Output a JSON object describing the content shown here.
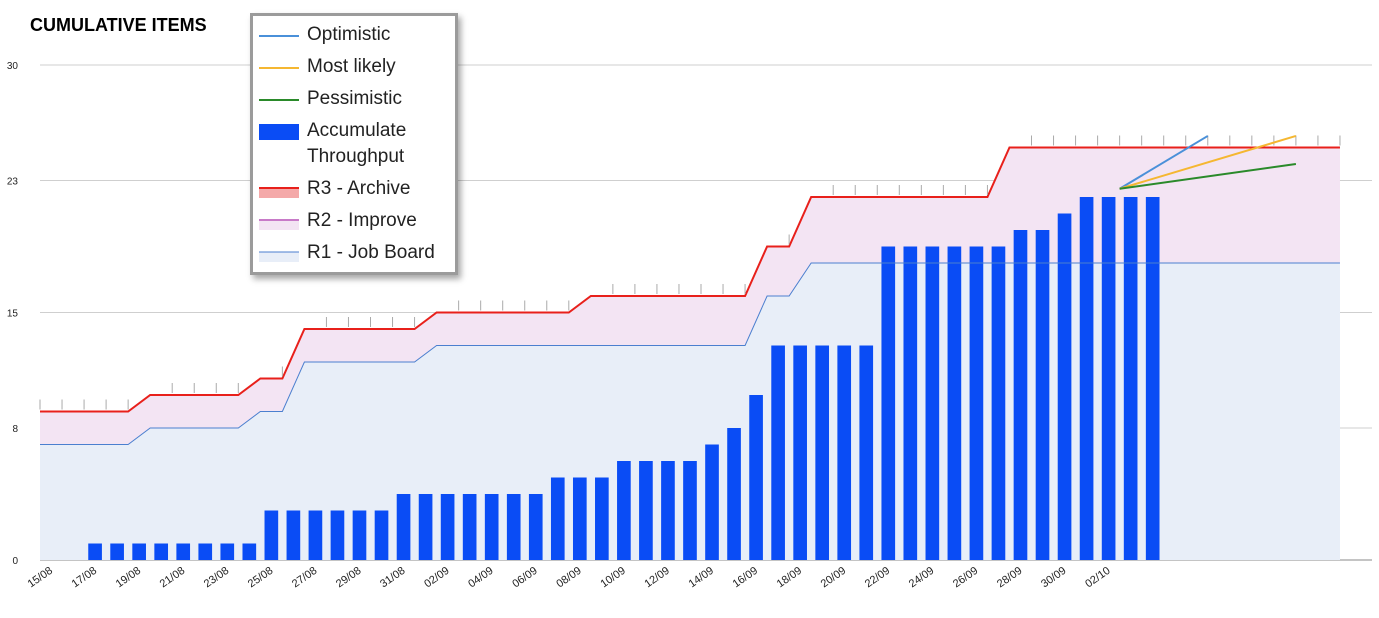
{
  "chart_data": {
    "type": "bar+line+area",
    "title": "CUMULATIVE ITEMS",
    "xlabel": "",
    "ylabel": "",
    "ylim": [
      0,
      30
    ],
    "y_ticks": [
      0,
      8,
      15,
      23,
      30
    ],
    "x_tick_labels": [
      "15/08",
      "17/08",
      "19/08",
      "21/08",
      "23/08",
      "25/08",
      "27/08",
      "29/08",
      "31/08",
      "02/09",
      "04/09",
      "06/09",
      "08/09",
      "10/09",
      "12/09",
      "14/09",
      "16/09",
      "18/09",
      "20/09",
      "22/09",
      "24/09",
      "26/09",
      "28/09",
      "30/09",
      "02/10"
    ],
    "grid": true,
    "legend_position": "top-left",
    "series": [
      {
        "name": "Optimistic",
        "type": "line",
        "color": "#4a90d9",
        "points": [
          [
            49,
            22.5
          ],
          [
            53,
            25.7
          ]
        ]
      },
      {
        "name": "Most likely",
        "type": "line",
        "color": "#f5b731",
        "points": [
          [
            49,
            22.5
          ],
          [
            57,
            25.7
          ]
        ]
      },
      {
        "name": "Pessimistic",
        "type": "line",
        "color": "#2a8a2a",
        "points": [
          [
            49,
            22.5
          ],
          [
            57,
            24
          ]
        ]
      },
      {
        "name": "Accumulate Throughput",
        "type": "bar",
        "color": "#0a4cf5",
        "values": [
          0,
          0,
          1,
          1,
          1,
          1,
          1,
          1,
          1,
          1,
          3,
          3,
          3,
          3,
          3,
          3,
          4,
          4,
          4,
          4,
          4,
          4,
          4,
          5,
          5,
          5,
          6,
          6,
          6,
          6,
          7,
          8,
          10,
          13,
          13,
          13,
          13,
          13,
          19,
          19,
          19,
          19,
          19,
          19,
          20,
          20,
          21,
          22,
          22,
          22,
          22
        ]
      },
      {
        "name": "R3 - Archive",
        "type": "step-line",
        "color": "#e8201b",
        "values": [
          9,
          9,
          9,
          9,
          9,
          10,
          10,
          10,
          10,
          10,
          11,
          11,
          14,
          14,
          14,
          14,
          14,
          14,
          15,
          15,
          15,
          15,
          15,
          15,
          15,
          16,
          16,
          16,
          16,
          16,
          16,
          16,
          16,
          19,
          19,
          22,
          22,
          22,
          22,
          22,
          22,
          22,
          22,
          22,
          25,
          25,
          25,
          25,
          25,
          25,
          25,
          25,
          25,
          25,
          25,
          25,
          25,
          25,
          25,
          25
        ]
      },
      {
        "name": "R2 - Improve",
        "type": "area",
        "color": "#f3e4f3",
        "values": [
          9,
          9,
          9,
          9,
          9,
          10,
          10,
          10,
          10,
          10,
          11,
          11,
          14,
          14,
          14,
          14,
          14,
          14,
          15,
          15,
          15,
          15,
          15,
          15,
          15,
          16,
          16,
          16,
          16,
          16,
          16,
          16,
          16,
          19,
          19,
          22,
          22,
          22,
          22,
          22,
          22,
          22,
          22,
          22,
          25,
          25,
          25,
          25,
          25,
          25,
          25,
          25,
          25,
          25,
          25,
          25,
          25,
          25,
          25,
          25
        ]
      },
      {
        "name": "R1 - Job Board",
        "type": "area",
        "color": "#e8eef8",
        "values": [
          7,
          7,
          7,
          7,
          7,
          8,
          8,
          8,
          8,
          8,
          9,
          9,
          12,
          12,
          12,
          12,
          12,
          12,
          13,
          13,
          13,
          13,
          13,
          13,
          13,
          13,
          13,
          13,
          13,
          13,
          13,
          13,
          13,
          16,
          16,
          18,
          18,
          18,
          18,
          18,
          18,
          18,
          18,
          18,
          18,
          18,
          18,
          18,
          18,
          18,
          18,
          18,
          18,
          18,
          18,
          18,
          18,
          18,
          18,
          18
        ]
      }
    ]
  },
  "colors": {
    "grid": "#cfcfcf",
    "axis_text": "#222222",
    "r3_line": "#e8201b",
    "r1_line": "#4b7fcf",
    "tick_marks": "#aaaaaa"
  }
}
